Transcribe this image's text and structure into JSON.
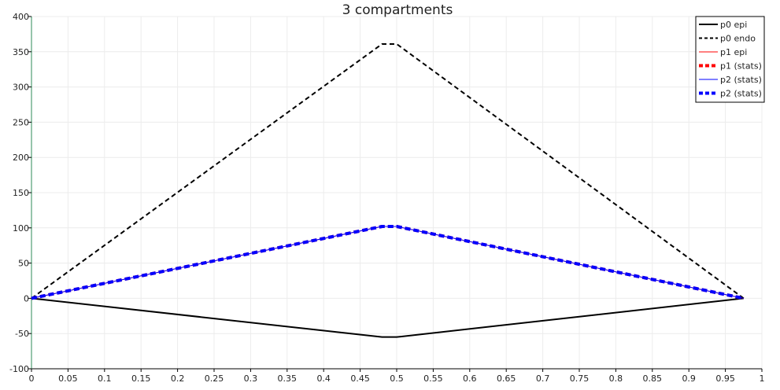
{
  "chart_data": {
    "type": "line",
    "title": "3 compartments",
    "xlabel": "",
    "ylabel": "",
    "xlim": [
      0,
      1
    ],
    "ylim": [
      -100,
      400
    ],
    "grid": true,
    "legend_position": "top-right",
    "x_ticks": [
      "0",
      "0.05",
      "0.1",
      "0.15",
      "0.2",
      "0.25",
      "0.3",
      "0.35",
      "0.4",
      "0.45",
      "0.5",
      "0.55",
      "0.6",
      "0.65",
      "0.7",
      "0.75",
      "0.8",
      "0.85",
      "0.9",
      "0.95",
      "1"
    ],
    "y_ticks": [
      "-100",
      "-50",
      "0",
      "50",
      "100",
      "150",
      "200",
      "250",
      "300",
      "350",
      "400"
    ],
    "series": [
      {
        "name": "p0 epi",
        "color": "#000000",
        "style": "solid",
        "width": 2,
        "x": [
          0,
          0.48,
          0.5,
          0.975
        ],
        "y": [
          0,
          -55,
          -55,
          0
        ]
      },
      {
        "name": "p0 endo",
        "color": "#000000",
        "style": "dashed",
        "width": 2,
        "x": [
          0,
          0.48,
          0.5,
          0.975
        ],
        "y": [
          0,
          361,
          361,
          0
        ]
      },
      {
        "name": "p1 epi",
        "color": "#ff0000",
        "style": "solid",
        "width": 1,
        "x": [
          0,
          0.48,
          0.5,
          0.975
        ],
        "y": [
          0,
          102,
          102,
          0
        ]
      },
      {
        "name": "p1 (stats)",
        "color": "#ff0000",
        "style": "dashed",
        "width": 4,
        "x": [
          0,
          0.48,
          0.5,
          0.975
        ],
        "y": [
          0,
          102,
          102,
          0
        ]
      },
      {
        "name": "p2 (stats)",
        "color": "#0000ff",
        "style": "solid",
        "width": 1,
        "x": [
          0,
          0.48,
          0.5,
          0.975
        ],
        "y": [
          0,
          102,
          102,
          0
        ]
      },
      {
        "name": "p2 (stats)",
        "color": "#0000ff",
        "style": "dashed",
        "width": 4,
        "x": [
          0,
          0.48,
          0.5,
          0.975
        ],
        "y": [
          0,
          102,
          102,
          0
        ]
      }
    ]
  }
}
